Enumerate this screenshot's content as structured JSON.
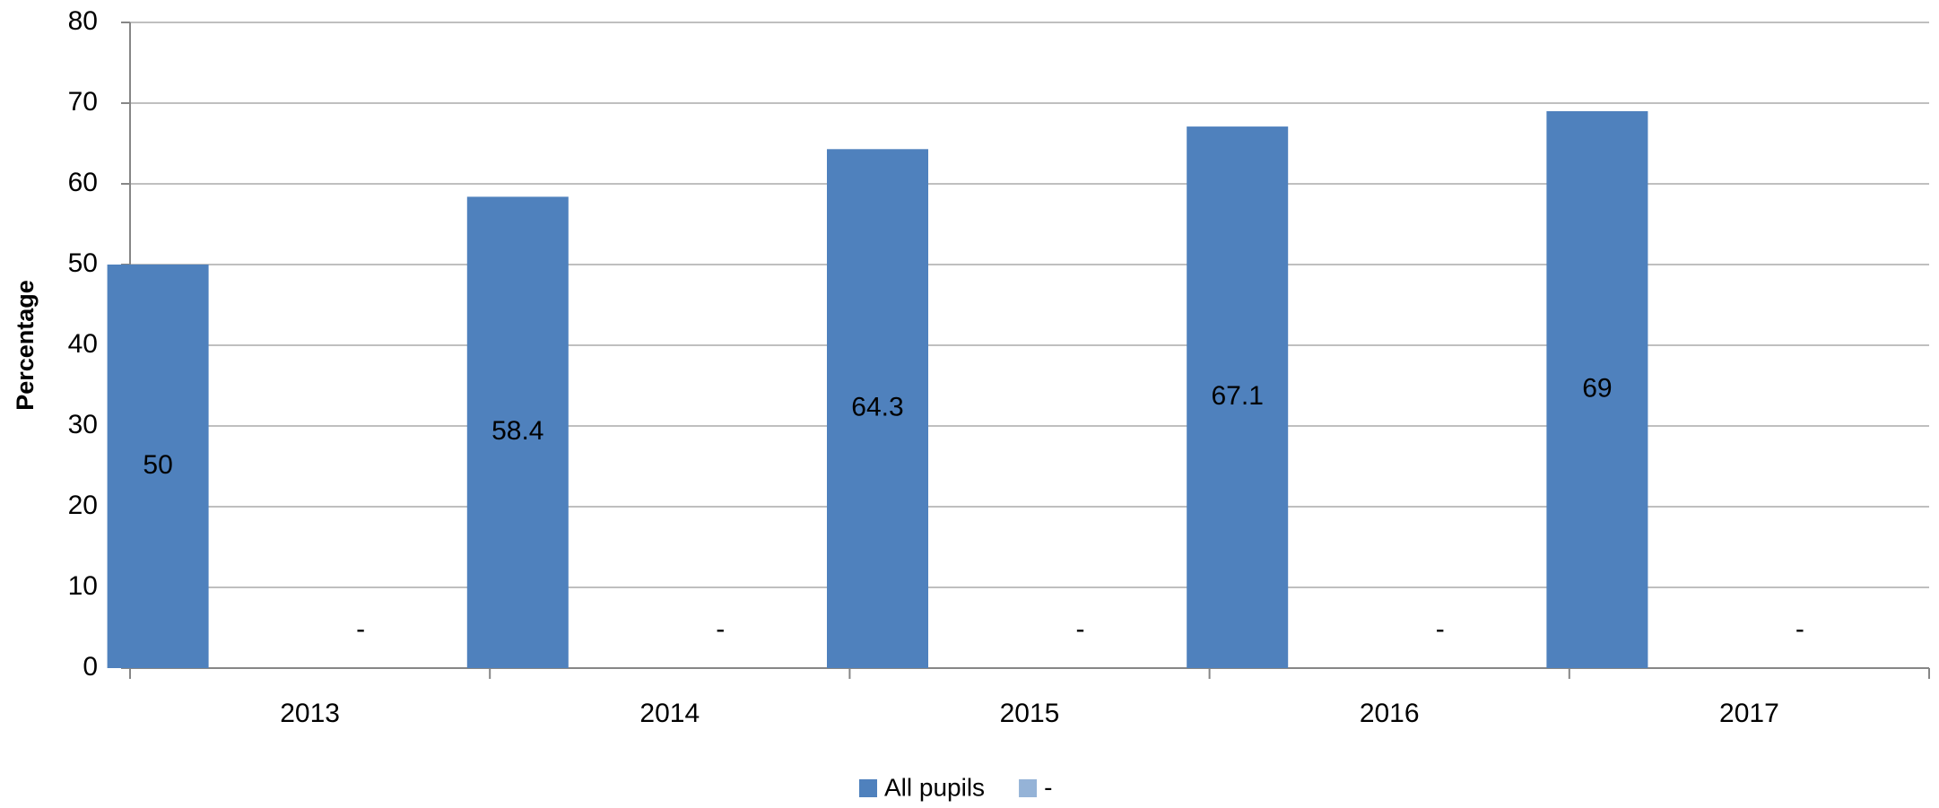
{
  "chart_data": {
    "type": "bar",
    "y_label": "Percentage",
    "categories": [
      "2013",
      "2014",
      "2015",
      "2016",
      "2017"
    ],
    "series": [
      {
        "name": "All pupils",
        "color": "#4f81bd",
        "values": [
          50,
          58.4,
          64.3,
          67.1,
          69
        ]
      },
      {
        "name": "-",
        "color": "#95b3d7",
        "values": [
          0,
          0,
          0,
          0,
          0
        ],
        "value_labels": [
          "-",
          "-",
          "-",
          "-",
          "-"
        ]
      }
    ],
    "ylim": [
      0,
      80
    ],
    "yticks": [
      0,
      10,
      20,
      30,
      40,
      50,
      60,
      70,
      80
    ],
    "grid": true,
    "legend": "bottom"
  }
}
